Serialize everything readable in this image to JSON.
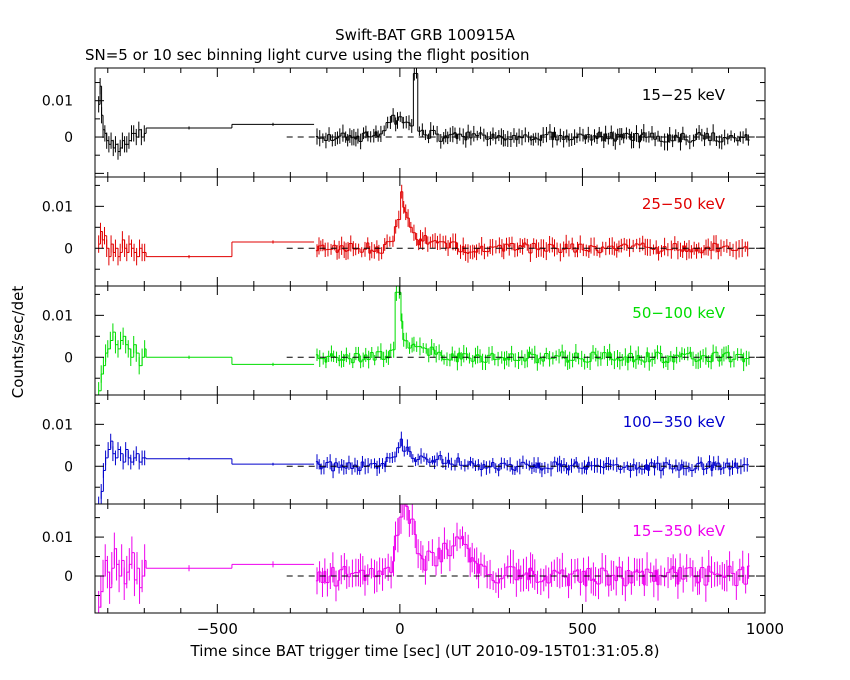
{
  "chart_data": {
    "type": "line",
    "title": "Swift-BAT GRB 100915A",
    "subtitle": "SN=5 or 10 sec binning light curve using the flight position",
    "xlabel": "Time since BAT trigger time [sec] (UT 2010-09-15T01:31:05.8)",
    "ylabel": "Counts/sec/det",
    "xlim": [
      -835,
      1000
    ],
    "x_ticks": [
      -500,
      0,
      500,
      1000
    ],
    "x_tick_labels": [
      "−500",
      "0",
      "500",
      "1000"
    ],
    "y_ticks": [
      0,
      0.01
    ],
    "y_tick_labels": [
      "0",
      "0.01"
    ],
    "baseline_dashed_from": -310,
    "panels": [
      {
        "name": "15−25 keV",
        "color": "#000000",
        "ylim": [
          -0.011,
          0.019
        ],
        "pre_pts": [
          [
            -825,
            0.009
          ],
          [
            -821,
            0.014
          ],
          [
            -817,
            0.006
          ],
          [
            -813,
            0.002
          ],
          [
            -808,
            0.001
          ],
          [
            -803,
            -0.001
          ],
          [
            -797,
            -0.002
          ],
          [
            -791,
            -0.001
          ],
          [
            -785,
            -0.003
          ],
          [
            -779,
            -0.002
          ],
          [
            -772,
            -0.004
          ],
          [
            -766,
            -0.003
          ],
          [
            -760,
            -0.001
          ],
          [
            -754,
            -0.002
          ],
          [
            -748,
            -0.002
          ],
          [
            -742,
            -0.001
          ],
          [
            -735,
            0.001
          ],
          [
            -729,
            0.001
          ],
          [
            -722,
            0.0
          ],
          [
            -715,
            0.002
          ],
          [
            -708,
            0.0
          ],
          [
            -700,
            0.001
          ]
        ],
        "flat_segs": [
          [
            -695,
            -460,
            0.0025
          ],
          [
            -460,
            -235,
            0.0035
          ]
        ],
        "peaks": [
          [
            -20,
            0.0028,
            28
          ],
          [
            38,
            0.008,
            6
          ],
          [
            10,
            0.0025,
            60
          ]
        ],
        "peak_x": 40,
        "peak_y": 0.0175,
        "noise": 0.0014,
        "seed": 3
      },
      {
        "name": "25−50 keV",
        "color": "#e00000",
        "ylim": [
          -0.009,
          0.017
        ],
        "pre_pts": [
          [
            -825,
            0.001
          ],
          [
            -820,
            0.004
          ],
          [
            -815,
            0.002
          ],
          [
            -809,
            0.003
          ],
          [
            -803,
            0.0
          ],
          [
            -797,
            -0.002
          ],
          [
            -791,
            0.001
          ],
          [
            -785,
            -0.001
          ],
          [
            -779,
            0.0
          ],
          [
            -772,
            -0.002
          ],
          [
            -766,
            -0.001
          ],
          [
            -760,
            0.002
          ],
          [
            -754,
            0.0
          ],
          [
            -748,
            -0.001
          ],
          [
            -742,
            0.001
          ],
          [
            -735,
            0.0
          ],
          [
            -728,
            -0.001
          ],
          [
            -721,
            -0.002
          ],
          [
            -713,
            0.0
          ],
          [
            -706,
            -0.001
          ],
          [
            -699,
            -0.001
          ]
        ],
        "flat_segs": [
          [
            -695,
            -460,
            -0.002
          ],
          [
            -460,
            -235,
            0.0015
          ]
        ],
        "peaks": [
          [
            5,
            0.0085,
            22
          ],
          [
            60,
            0.002,
            60
          ]
        ],
        "peak_x": 0,
        "peak_y": 0.0135,
        "noise": 0.0013,
        "seed": 11
      },
      {
        "name": "50−100 keV",
        "color": "#00dd00",
        "ylim": [
          -0.009,
          0.017
        ],
        "pre_pts": [
          [
            -825,
            -0.008
          ],
          [
            -818,
            -0.004
          ],
          [
            -812,
            -0.002
          ],
          [
            -806,
            0.001
          ],
          [
            -800,
            0.002
          ],
          [
            -793,
            0.004
          ],
          [
            -786,
            0.006
          ],
          [
            -779,
            0.003
          ],
          [
            -772,
            0.002
          ],
          [
            -765,
            0.004
          ],
          [
            -758,
            0.005
          ],
          [
            -751,
            0.003
          ],
          [
            -744,
            0.002
          ],
          [
            -737,
            0.0
          ],
          [
            -729,
            0.003
          ],
          [
            -722,
            0.001
          ],
          [
            -714,
            -0.002
          ],
          [
            -706,
            0.0
          ],
          [
            -699,
            0.002
          ]
        ],
        "flat_segs": [
          [
            -695,
            -460,
            0.0
          ],
          [
            -460,
            -235,
            -0.0017
          ]
        ],
        "peaks": [
          [
            -5,
            0.009,
            14
          ],
          [
            40,
            0.0025,
            50
          ]
        ],
        "peak_x": -8,
        "peak_y": 0.0155,
        "noise": 0.0013,
        "seed": 27
      },
      {
        "name": "100−350 keV",
        "color": "#0000cc",
        "ylim": [
          -0.009,
          0.017
        ],
        "pre_pts": [
          [
            -825,
            -0.009
          ],
          [
            -818,
            -0.006
          ],
          [
            -812,
            -0.001
          ],
          [
            -806,
            0.002
          ],
          [
            -799,
            0.004
          ],
          [
            -792,
            0.006
          ],
          [
            -786,
            0.003
          ],
          [
            -779,
            0.002
          ],
          [
            -772,
            0.004
          ],
          [
            -765,
            0.003
          ],
          [
            -758,
            0.001
          ],
          [
            -751,
            0.004
          ],
          [
            -744,
            0.002
          ],
          [
            -737,
            0.001
          ],
          [
            -729,
            0.002
          ],
          [
            -722,
            0.003
          ],
          [
            -714,
            0.001
          ],
          [
            -706,
            0.002
          ],
          [
            -699,
            0.002
          ]
        ],
        "flat_segs": [
          [
            -695,
            -460,
            0.0018
          ],
          [
            -460,
            -235,
            0.0005
          ]
        ],
        "peaks": [
          [
            0,
            0.004,
            35
          ],
          [
            100,
            0.0015,
            80
          ]
        ],
        "peak_x": 0,
        "peak_y": 0.0065,
        "noise": 0.0011,
        "seed": 41
      },
      {
        "name": "15−350 keV",
        "color": "#ee00ee",
        "ylim": [
          -0.0095,
          0.0185
        ],
        "pre_pts": [
          [
            -825,
            -0.008
          ],
          [
            -819,
            -0.004
          ],
          [
            -813,
            0.0
          ],
          [
            -807,
            0.004
          ],
          [
            -801,
            0.001
          ],
          [
            -795,
            -0.003
          ],
          [
            -789,
            0.002
          ],
          [
            -782,
            0.007
          ],
          [
            -776,
            0.003
          ],
          [
            -769,
            0.0
          ],
          [
            -762,
            0.004
          ],
          [
            -755,
            -0.002
          ],
          [
            -748,
            0.001
          ],
          [
            -741,
            0.003
          ],
          [
            -734,
            0.006
          ],
          [
            -727,
            -0.001
          ],
          [
            -720,
            0.002
          ],
          [
            -713,
            -0.003
          ],
          [
            -706,
            0.0
          ],
          [
            -699,
            0.004
          ]
        ],
        "flat_segs": [
          [
            -695,
            -460,
            0.002
          ],
          [
            -460,
            -235,
            0.003
          ]
        ],
        "peaks": [
          [
            10,
            0.0175,
            28
          ],
          [
            160,
            0.007,
            45
          ],
          [
            90,
            0.004,
            70
          ]
        ],
        "peak_x": 10,
        "peak_y": 0.0185,
        "noise": 0.0026,
        "seed": 77
      }
    ]
  }
}
